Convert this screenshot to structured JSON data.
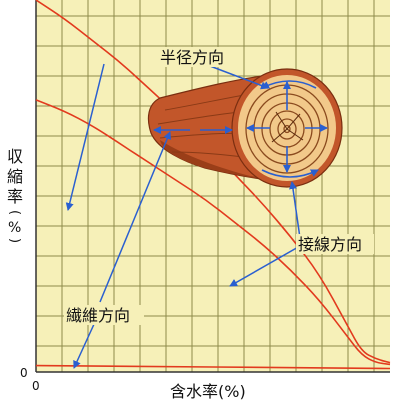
{
  "axes": {
    "y_label_chars": [
      "収",
      "縮",
      "率",
      "(",
      "%",
      ")"
    ],
    "x_label": "含水率(%)",
    "y_origin_tick": "0",
    "x_origin_tick": "0"
  },
  "callouts": {
    "radial": "半径方向",
    "tangential": "接線方向",
    "longitudinal": "繊維方向"
  },
  "colors": {
    "plot_background": "#f6f0b8",
    "grid": "#8d8a4a",
    "curves": "#e23a1e",
    "arrows": "#2a5fd0",
    "log_bark": "#c2562a",
    "log_heartwood": "#f2c98a"
  },
  "chart_data": {
    "type": "line",
    "series": [
      {
        "key": "tangential",
        "x": [
          0,
          8,
          16,
          24,
          32,
          40,
          48,
          56,
          64,
          72,
          80,
          88,
          92,
          96,
          100
        ],
        "y": [
          100,
          95,
          89,
          83,
          76,
          69,
          61,
          53,
          45,
          36,
          26,
          12,
          5,
          3,
          2
        ]
      },
      {
        "key": "radial",
        "x": [
          0,
          8,
          16,
          24,
          32,
          40,
          48,
          56,
          64,
          72,
          80,
          88,
          92,
          96,
          100
        ],
        "y": [
          73,
          70,
          66,
          61,
          56,
          51,
          46,
          40,
          34,
          27,
          19,
          9,
          4,
          2,
          1.5
        ]
      },
      {
        "key": "longitudinal",
        "x": [
          0,
          100
        ],
        "y": [
          1.2,
          0.4
        ]
      }
    ]
  }
}
